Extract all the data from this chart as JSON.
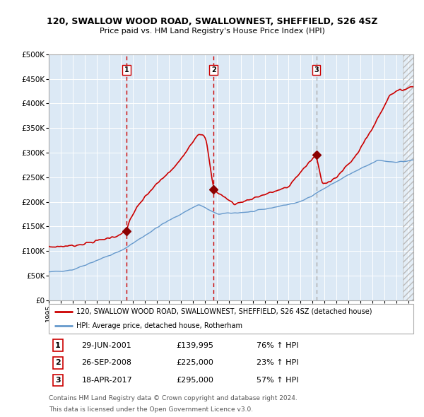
{
  "title": "120, SWALLOW WOOD ROAD, SWALLOWNEST, SHEFFIELD, S26 4SZ",
  "subtitle": "Price paid vs. HM Land Registry's House Price Index (HPI)",
  "legend_line1": "120, SWALLOW WOOD ROAD, SWALLOWNEST, SHEFFIELD, S26 4SZ (detached house)",
  "legend_line2": "HPI: Average price, detached house, Rotherham",
  "transactions": [
    {
      "num": 1,
      "date": "29-JUN-2001",
      "price": 139995,
      "hpi_pct": "76% ↑ HPI",
      "date_dec": 2001.49
    },
    {
      "num": 2,
      "date": "26-SEP-2008",
      "price": 225000,
      "hpi_pct": "23% ↑ HPI",
      "date_dec": 2008.74
    },
    {
      "num": 3,
      "date": "18-APR-2017",
      "price": 295000,
      "hpi_pct": "57% ↑ HPI",
      "date_dec": 2017.3
    }
  ],
  "footnote1": "Contains HM Land Registry data © Crown copyright and database right 2024.",
  "footnote2": "This data is licensed under the Open Government Licence v3.0.",
  "ylim": [
    0,
    500000
  ],
  "ytick_vals": [
    0,
    50000,
    100000,
    150000,
    200000,
    250000,
    300000,
    350000,
    400000,
    450000,
    500000
  ],
  "ytick_labels": [
    "£0",
    "£50K",
    "£100K",
    "£150K",
    "£200K",
    "£250K",
    "£300K",
    "£350K",
    "£400K",
    "£450K",
    "£500K"
  ],
  "xmin": 1995,
  "xmax": 2025.4,
  "background_color": "#dce9f5",
  "line_color_red": "#cc0000",
  "line_color_blue": "#6699cc",
  "vline_color_red": "#cc0000",
  "vline_color_grey": "#aaaaaa",
  "marker_color": "#8b0000"
}
